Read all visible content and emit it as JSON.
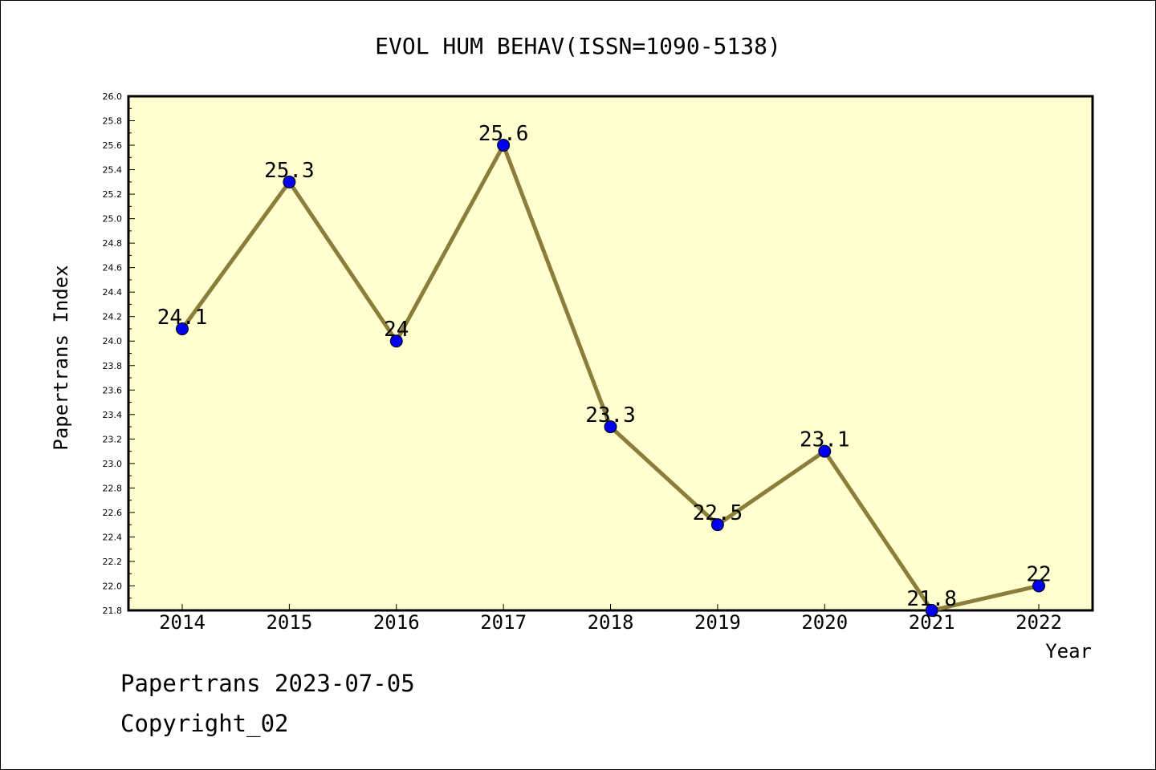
{
  "chart_data": {
    "type": "line",
    "title": "EVOL HUM BEHAV(ISSN=1090-5138)",
    "xlabel": "Year",
    "ylabel": "Papertrans Index",
    "categories": [
      "2014",
      "2015",
      "2016",
      "2017",
      "2018",
      "2019",
      "2020",
      "2021",
      "2022"
    ],
    "values": [
      24.1,
      25.3,
      24.0,
      25.6,
      23.3,
      22.5,
      23.1,
      21.8,
      22.0
    ],
    "data_labels": [
      "24.1",
      "25.3",
      "24",
      "25.6",
      "23.3",
      "22.5",
      "23.1",
      "21.8",
      "22"
    ],
    "ylim": [
      21.8,
      26.0
    ],
    "yticks": [
      "21.8",
      "22.0",
      "22.2",
      "22.4",
      "22.6",
      "22.8",
      "23.0",
      "23.2",
      "23.4",
      "23.6",
      "23.8",
      "24.0",
      "24.2",
      "24.4",
      "24.6",
      "24.8",
      "25.0",
      "25.2",
      "25.4",
      "25.6",
      "25.8",
      "26.0"
    ],
    "grid": false,
    "legend": "none",
    "colors": {
      "plot_background": "#ffffd0",
      "line": "#8b7d3a",
      "marker": "#0000ee"
    }
  },
  "footer": {
    "line1": "Papertrans 2023-07-05",
    "line2": "Copyright_02"
  }
}
